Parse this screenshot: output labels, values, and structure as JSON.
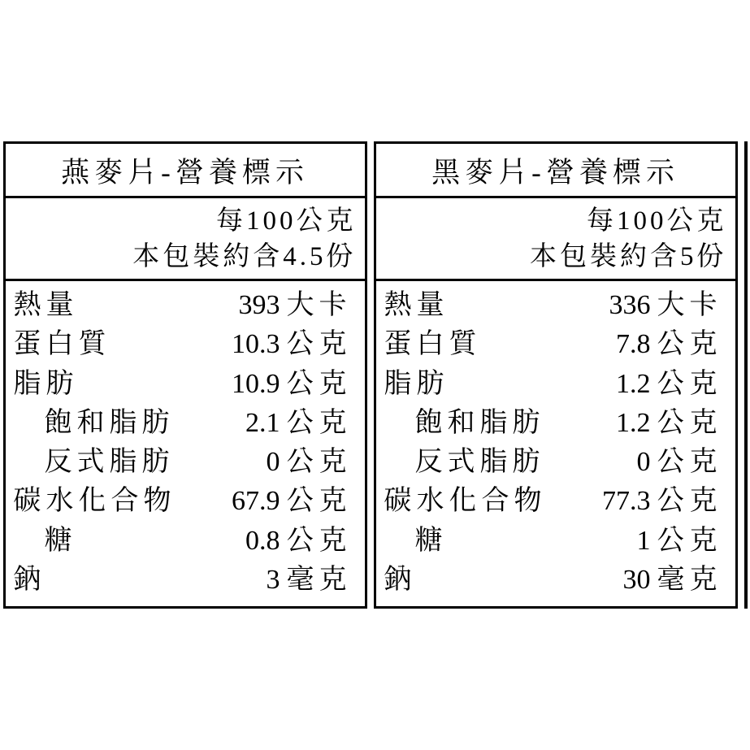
{
  "panels": [
    {
      "title": "燕麥片-營養標示",
      "sub_line1": "每100公克",
      "sub_line2": "本包裝約含4.5份",
      "rows": [
        {
          "name": "熱量",
          "value": "393",
          "unit": "大卡",
          "indent": false
        },
        {
          "name": "蛋白質",
          "value": "10.3",
          "unit": "公克",
          "indent": false
        },
        {
          "name": "脂肪",
          "value": "10.9",
          "unit": "公克",
          "indent": false
        },
        {
          "name": "飽和脂肪",
          "value": "2.1",
          "unit": "公克",
          "indent": true
        },
        {
          "name": "反式脂肪",
          "value": "0",
          "unit": "公克",
          "indent": true
        },
        {
          "name": "碳水化合物",
          "value": "67.9",
          "unit": "公克",
          "indent": false
        },
        {
          "name": "糖",
          "value": "0.8",
          "unit": "公克",
          "indent": true
        },
        {
          "name": "鈉",
          "value": "3",
          "unit": "毫克",
          "indent": false
        }
      ]
    },
    {
      "title": "黑麥片-營養標示",
      "sub_line1": "每100公克",
      "sub_line2": "本包裝約含5份",
      "rows": [
        {
          "name": "熱量",
          "value": "336",
          "unit": "大卡",
          "indent": false
        },
        {
          "name": "蛋白質",
          "value": "7.8",
          "unit": "公克",
          "indent": false
        },
        {
          "name": "脂肪",
          "value": "1.2",
          "unit": "公克",
          "indent": false
        },
        {
          "name": "飽和脂肪",
          "value": "1.2",
          "unit": "公克",
          "indent": true
        },
        {
          "name": "反式脂肪",
          "value": "0",
          "unit": "公克",
          "indent": true
        },
        {
          "name": "碳水化合物",
          "value": "77.3",
          "unit": "公克",
          "indent": false
        },
        {
          "name": "糖",
          "value": "1",
          "unit": "公克",
          "indent": true
        },
        {
          "name": "鈉",
          "value": "30",
          "unit": "毫克",
          "indent": false
        }
      ]
    }
  ]
}
